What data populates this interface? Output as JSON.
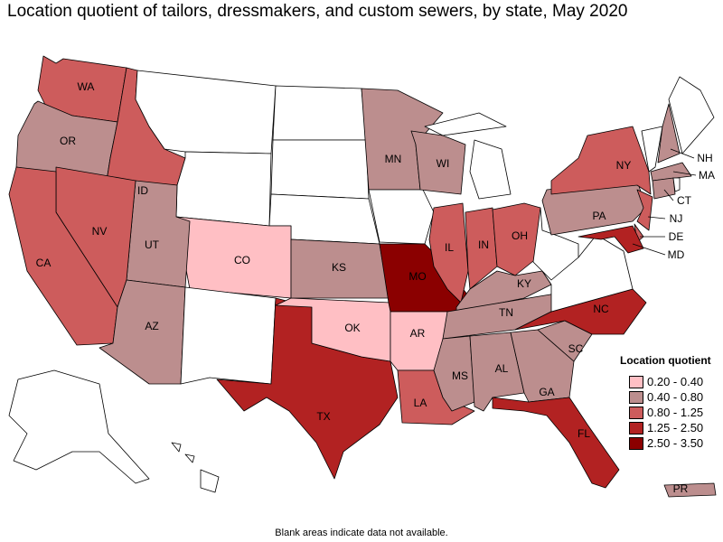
{
  "title": "Location quotient of tailors, dressmakers, and custom sewers, by state, May 2020",
  "footnote": "Blank areas indicate data not available.",
  "legend": {
    "title": "Location quotient",
    "bins": [
      {
        "label": "0.20 - 0.40",
        "color": "#FFBFC4"
      },
      {
        "label": "0.40 - 0.80",
        "color": "#BC8E8E"
      },
      {
        "label": "0.80 - 1.25",
        "color": "#CD5C5C"
      },
      {
        "label": "1.25 - 2.50",
        "color": "#B22222"
      },
      {
        "label": "2.50 - 3.50",
        "color": "#8B0000"
      }
    ],
    "blank_color": "#FFFFFF"
  },
  "states": {
    "WA": 2,
    "OR": 1,
    "ID": 2,
    "NV": 2,
    "CA": 2,
    "UT": 1,
    "AZ": 1,
    "CO": 0,
    "MN": 1,
    "WI": 1,
    "KS": 1,
    "OK": 0,
    "AR": 0,
    "MO": 4,
    "TX": 3,
    "LA": 2,
    "IL": 2,
    "IN": 2,
    "OH": 2,
    "KY": 1,
    "TN": 1,
    "MS": 1,
    "AL": 1,
    "GA": 1,
    "SC": 1,
    "NC": 3,
    "FL": 3,
    "PA": 1,
    "NY": 2,
    "NJ": 2,
    "DE": 2,
    "MD": 3,
    "NH": 1,
    "MA": 1,
    "CT": 1,
    "PR": 1,
    "MT": null,
    "WY": null,
    "ND": null,
    "SD": null,
    "NE": null,
    "NM": null,
    "IA": null,
    "MI": null,
    "VA": null,
    "WV": null,
    "ME": null,
    "VT": null,
    "RI": null,
    "AK": null,
    "HI": null
  },
  "labels": [
    "WA",
    "OR",
    "ID",
    "NV",
    "CA",
    "UT",
    "AZ",
    "CO",
    "MN",
    "WI",
    "KS",
    "OK",
    "AR",
    "MO",
    "TX",
    "LA",
    "IL",
    "IN",
    "OH",
    "KY",
    "TN",
    "MS",
    "AL",
    "GA",
    "SC",
    "NC",
    "FL",
    "PA",
    "NY",
    "NJ",
    "DE",
    "MD",
    "NH",
    "MA",
    "CT",
    "PR"
  ]
}
